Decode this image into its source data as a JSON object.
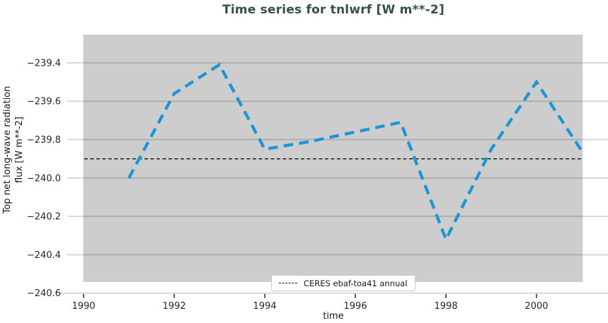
{
  "title": "Time series for tnlwrf [W m**-2]",
  "axes": {
    "xlabel": "time",
    "ylabel": "Top net long-wave radiation\nflux [W m**-2]"
  },
  "legend": {
    "label": "CERES ebaf-toa41 annual"
  },
  "colors": {
    "title": "#33504d",
    "series_blue": "#1e95d4",
    "plot_bg": "#cdcdcd",
    "grid": "rgba(0,0,0,0.15)",
    "tick_mark": "#4d4d4d",
    "tick_text": "#262626",
    "reference_line": "#111111"
  },
  "chart_data": {
    "type": "line",
    "title": "Time series for tnlwrf [W m**-2]",
    "xlabel": "time",
    "ylabel": "Top net long-wave radiation flux [W m**-2]",
    "x": [
      1991,
      1992,
      1993,
      1994,
      1995,
      1996,
      1997,
      1998,
      1999,
      2000,
      2001
    ],
    "series": [
      {
        "name": "tnlwrf",
        "color": "#1e95d4",
        "style": "dashed",
        "values": [
          -240.0,
          -239.56,
          -239.41,
          -239.85,
          -239.81,
          -239.76,
          -239.71,
          -240.32,
          -239.85,
          -239.5,
          -239.86
        ]
      }
    ],
    "reference_line": {
      "label": "CERES ebaf-toa41 annual",
      "value": -239.9,
      "color": "#111111",
      "style": "dashed"
    },
    "xticks": [
      1990,
      1992,
      1994,
      1996,
      1998,
      2000
    ],
    "yticks": [
      -239.4,
      -239.6,
      -239.8,
      -240.0,
      -240.2,
      -240.4,
      -240.6
    ],
    "xlim": [
      1989.99,
      2001.02
    ],
    "ylim": [
      -240.542,
      -239.253
    ],
    "grid": true,
    "plot_background": "#cdcdcd",
    "legend_position": "lower center"
  }
}
